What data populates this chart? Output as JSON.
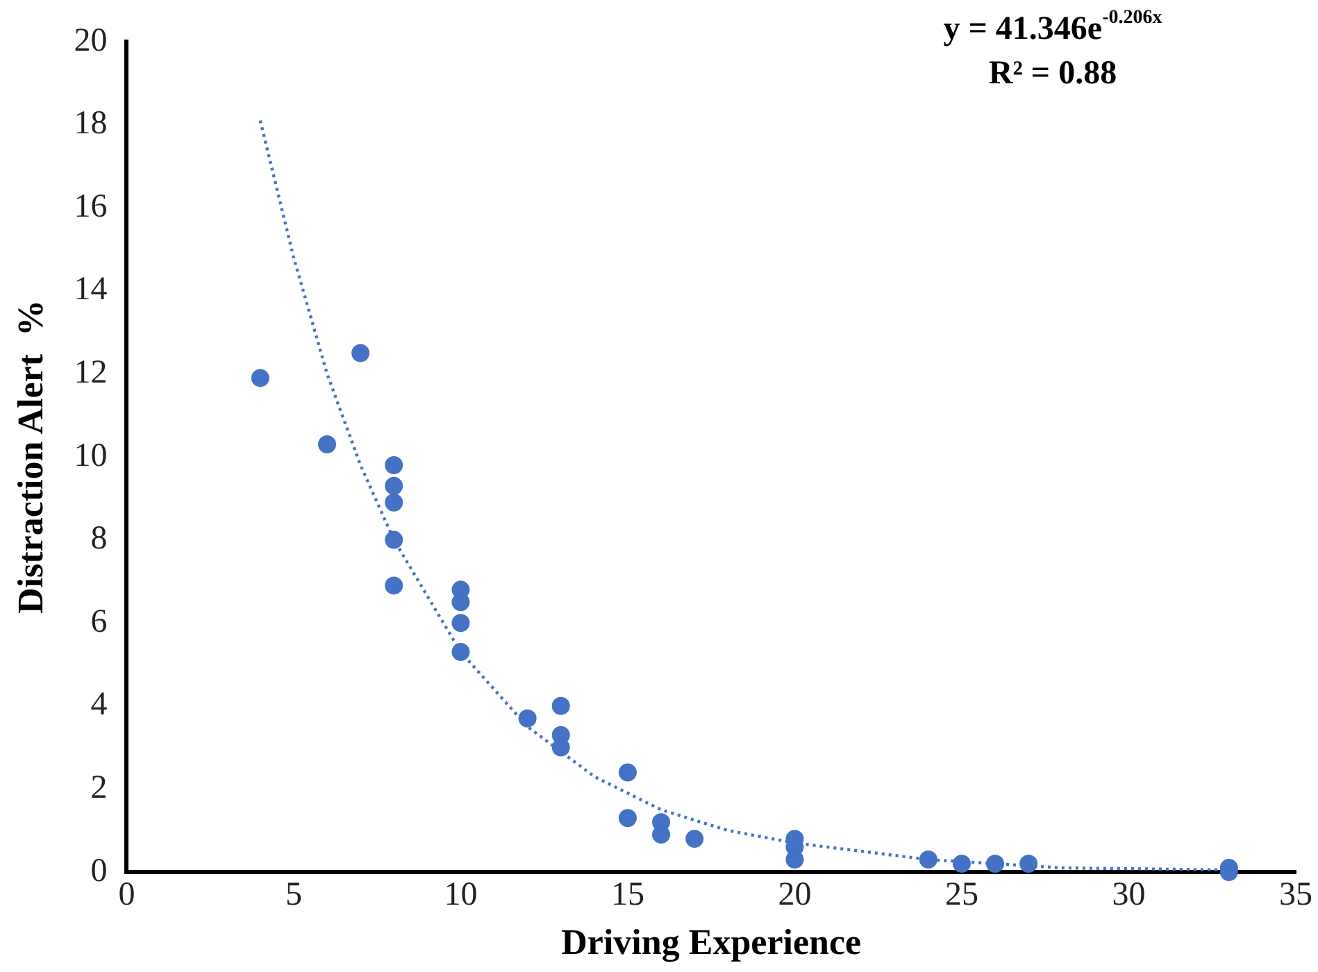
{
  "chart_data": {
    "type": "scatter",
    "xlabel": "Driving Experience",
    "ylabel": "Distraction Alert  %",
    "annotations": [
      "y = 41.346e$^{-0.206x}$",
      "R² = 0.88"
    ],
    "xlim": [
      0,
      35
    ],
    "xticks": [
      0,
      5,
      10,
      15,
      20,
      25,
      30,
      35
    ],
    "ylim": [
      0,
      20
    ],
    "yticks": [
      0,
      2,
      4,
      6,
      8,
      10,
      12,
      14,
      16,
      18,
      20
    ],
    "grid": false,
    "legend": false,
    "marker": "circle",
    "series": [
      {
        "color": "#4472c4",
        "x": [
          4,
          6,
          7,
          8,
          8,
          8,
          8,
          8,
          10,
          10,
          10,
          10,
          12,
          13,
          13,
          13,
          15,
          15,
          16,
          16,
          17,
          20,
          20,
          20,
          24,
          25,
          26,
          27,
          33,
          33
        ],
        "values": [
          11.9,
          10.3,
          12.5,
          9.8,
          9.3,
          8.9,
          8.0,
          6.9,
          6.8,
          6.5,
          6.0,
          5.3,
          3.7,
          4.0,
          3.3,
          3.0,
          2.4,
          1.3,
          1.2,
          0.9,
          0.8,
          0.8,
          0.6,
          0.3,
          0.3,
          0.2,
          0.2,
          0.2,
          0.1,
          0.0
        ]
      },
      {
        "type": "line",
        "color": "#4472c4",
        "line_style": "dotted",
        "marker": "none",
        "x": [
          4,
          5,
          6,
          7,
          8,
          10,
          12,
          14,
          16,
          18,
          20,
          24,
          28,
          33
        ],
        "values": [
          18.1,
          14.8,
          12.0,
          9.8,
          8.0,
          5.3,
          3.5,
          2.3,
          1.5,
          1.0,
          0.7,
          0.3,
          0.1,
          0.05
        ]
      }
    ]
  }
}
